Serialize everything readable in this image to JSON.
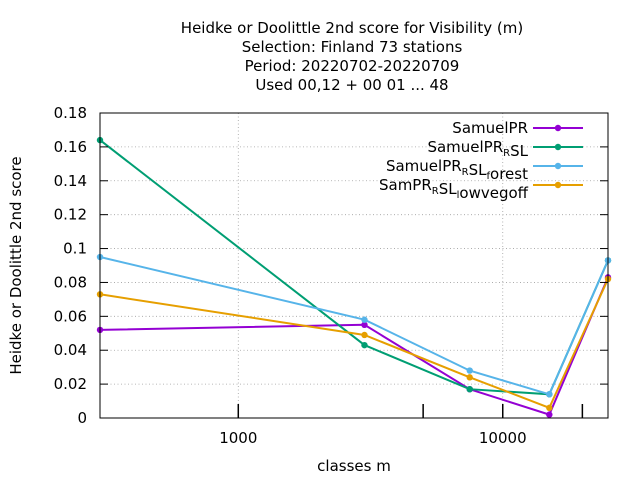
{
  "chart_data": {
    "type": "line",
    "title_lines": [
      "Heidke or Doolittle 2nd score  for Visibility (m)",
      "Selection: Finland     73 stations",
      "Period: 20220702-20220709",
      "Used  00,12  + 00 01 ... 48"
    ],
    "xlabel": "classes m",
    "ylabel": "Heidke or Doolittle 2nd score",
    "xscale": "log",
    "xlim": [
      300,
      25000
    ],
    "ylim": [
      0,
      0.18
    ],
    "xticks": [
      {
        "value": 1000,
        "label": "1000"
      },
      {
        "value": 10000,
        "label": "10000"
      }
    ],
    "xminor_ticks": [
      5000,
      20000
    ],
    "yticks": [
      {
        "value": 0,
        "label": "0"
      },
      {
        "value": 0.02,
        "label": "0.02"
      },
      {
        "value": 0.04,
        "label": "0.04"
      },
      {
        "value": 0.06,
        "label": "0.06"
      },
      {
        "value": 0.08,
        "label": "0.08"
      },
      {
        "value": 0.1,
        "label": "0.1"
      },
      {
        "value": 0.12,
        "label": "0.12"
      },
      {
        "value": 0.14,
        "label": "0.14"
      },
      {
        "value": 0.16,
        "label": "0.16"
      },
      {
        "value": 0.18,
        "label": "0.18"
      }
    ],
    "grid": true,
    "legend_position": "top-right",
    "x": [
      300,
      3000,
      7500,
      15000,
      25000
    ],
    "series": [
      {
        "name": "SamuelPR",
        "name_parts": [
          [
            "SamuelPR",
            ""
          ]
        ],
        "color": "#9400d3",
        "values": [
          0.052,
          0.055,
          0.017,
          0.002,
          0.083
        ]
      },
      {
        "name": "SamuelPR_RSL",
        "name_parts": [
          [
            "SamuelPR",
            "R"
          ],
          [
            "SL",
            ""
          ]
        ],
        "color": "#009e73",
        "values": [
          0.164,
          0.043,
          0.017,
          0.014,
          0.093
        ]
      },
      {
        "name": "SamuelPR_RSL_forest",
        "name_parts": [
          [
            "SamuelPR",
            "R"
          ],
          [
            "SL",
            "f"
          ],
          [
            "orest",
            ""
          ]
        ],
        "color": "#56b4e9",
        "values": [
          0.095,
          0.058,
          0.028,
          0.014,
          0.093
        ]
      },
      {
        "name": "SamPR_RSL_lowvegoff",
        "name_parts": [
          [
            "SamPR",
            "R"
          ],
          [
            "SL",
            "l"
          ],
          [
            "owvegoff",
            ""
          ]
        ],
        "color": "#e69f00",
        "values": [
          0.073,
          0.049,
          0.024,
          0.006,
          0.082
        ]
      }
    ]
  }
}
